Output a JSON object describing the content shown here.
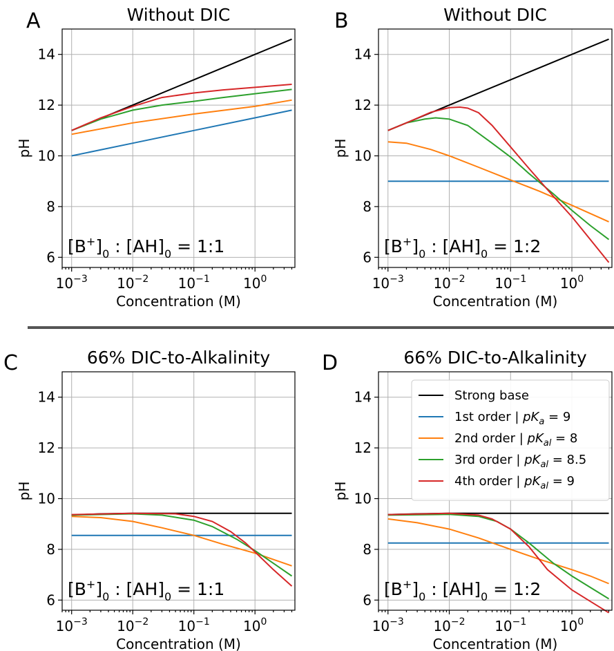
{
  "colors": {
    "strong_base": "#000000",
    "first_order": "#1f77b4",
    "second_order": "#ff7f0e",
    "third_order": "#2ca02c",
    "fourth_order": "#d62728"
  },
  "legend": [
    {
      "prefix": "Strong base",
      "var": "",
      "sub": "",
      "value": "",
      "color": "#000000"
    },
    {
      "prefix": "1st order | ",
      "var": "pK",
      "sub": "a",
      "value": " = 9",
      "color": "#1f77b4"
    },
    {
      "prefix": "2nd order | ",
      "var": "pK",
      "sub": "al",
      "value": " = 8",
      "color": "#ff7f0e"
    },
    {
      "prefix": "3rd order | ",
      "var": "pK",
      "sub": "al",
      "value": " = 8.5",
      "color": "#2ca02c"
    },
    {
      "prefix": "4th order | ",
      "var": "pK",
      "sub": "al",
      "value": " = 9",
      "color": "#d62728"
    }
  ],
  "chart_data": [
    {
      "type": "line",
      "panel": "A",
      "title": "Without DIC",
      "xlabel": "Concentration (M)",
      "ylabel": "pH",
      "xscale": "log",
      "xlim": [
        0.0007,
        4.5
      ],
      "ylim": [
        5.6,
        15.0
      ],
      "yticks": [
        6,
        8,
        10,
        12,
        14
      ],
      "xticks": [
        {
          "base": "10",
          "exp": "−3"
        },
        {
          "base": "10",
          "exp": "−2"
        },
        {
          "base": "10",
          "exp": "−1"
        },
        {
          "base": "10",
          "exp": "0"
        }
      ],
      "grid": true,
      "annotation": {
        "b": "[B",
        "plus": "+",
        "mid": "]",
        "s1": "0",
        "colon": " : [AH]",
        "s2": "0",
        "ratio": " = 1:1"
      },
      "series": [
        {
          "color": "#000000",
          "x": [
            0.001,
            0.01,
            0.1,
            1,
            4
          ],
          "y": [
            11.0,
            12.0,
            13.0,
            14.0,
            14.6
          ]
        },
        {
          "color": "#1f77b4",
          "x": [
            0.001,
            0.01,
            0.1,
            1,
            4
          ],
          "y": [
            10.0,
            10.5,
            11.0,
            11.5,
            11.8
          ]
        },
        {
          "color": "#ff7f0e",
          "x": [
            0.001,
            0.01,
            0.1,
            1,
            4
          ],
          "y": [
            10.85,
            11.3,
            11.65,
            11.95,
            12.2
          ]
        },
        {
          "color": "#2ca02c",
          "x": [
            0.001,
            0.003,
            0.01,
            0.03,
            0.1,
            0.3,
            1,
            4
          ],
          "y": [
            11.0,
            11.45,
            11.8,
            12.0,
            12.15,
            12.3,
            12.45,
            12.62
          ]
        },
        {
          "color": "#d62728",
          "x": [
            0.001,
            0.003,
            0.01,
            0.03,
            0.1,
            0.3,
            1,
            4
          ],
          "y": [
            11.0,
            11.5,
            11.95,
            12.3,
            12.48,
            12.6,
            12.7,
            12.82
          ]
        }
      ]
    },
    {
      "type": "line",
      "panel": "B",
      "title": "Without DIC",
      "xlabel": "Concentration (M)",
      "ylabel": "pH",
      "xscale": "log",
      "xlim": [
        0.0007,
        4.5
      ],
      "ylim": [
        5.6,
        15.0
      ],
      "yticks": [
        6,
        8,
        10,
        12,
        14
      ],
      "xticks": [
        {
          "base": "10",
          "exp": "−3"
        },
        {
          "base": "10",
          "exp": "−2"
        },
        {
          "base": "10",
          "exp": "−1"
        },
        {
          "base": "10",
          "exp": "0"
        }
      ],
      "grid": true,
      "annotation": {
        "b": "[B",
        "plus": "+",
        "mid": "]",
        "s1": "0",
        "colon": " : [AH]",
        "s2": "0",
        "ratio": " = 1:2"
      },
      "series": [
        {
          "color": "#000000",
          "x": [
            0.001,
            0.01,
            0.1,
            1,
            4
          ],
          "y": [
            11.0,
            12.0,
            13.0,
            14.0,
            14.6
          ]
        },
        {
          "color": "#1f77b4",
          "x": [
            0.001,
            4
          ],
          "y": [
            9.0,
            9.0
          ]
        },
        {
          "color": "#ff7f0e",
          "x": [
            0.001,
            0.002,
            0.005,
            0.01,
            0.03,
            0.1,
            0.3,
            1,
            4
          ],
          "y": [
            10.55,
            10.5,
            10.25,
            10.0,
            9.55,
            9.05,
            8.6,
            8.05,
            7.4
          ]
        },
        {
          "color": "#2ca02c",
          "x": [
            0.001,
            0.002,
            0.004,
            0.006,
            0.01,
            0.02,
            0.05,
            0.1,
            0.2,
            0.5,
            1,
            2,
            4
          ],
          "y": [
            11.0,
            11.3,
            11.45,
            11.5,
            11.45,
            11.2,
            10.5,
            9.95,
            9.3,
            8.5,
            7.85,
            7.25,
            6.7
          ]
        },
        {
          "color": "#d62728",
          "x": [
            0.001,
            0.002,
            0.005,
            0.01,
            0.015,
            0.02,
            0.03,
            0.05,
            0.1,
            0.2,
            0.5,
            1,
            2,
            4
          ],
          "y": [
            11.0,
            11.3,
            11.72,
            11.9,
            11.92,
            11.88,
            11.7,
            11.2,
            10.35,
            9.5,
            8.4,
            7.6,
            6.7,
            5.8
          ]
        }
      ]
    },
    {
      "type": "line",
      "panel": "C",
      "title": "66% DIC-to-Alkalinity",
      "xlabel": "Concentration (M)",
      "ylabel": "pH",
      "xscale": "log",
      "xlim": [
        0.0007,
        4.5
      ],
      "ylim": [
        5.6,
        15.0
      ],
      "yticks": [
        6,
        8,
        10,
        12,
        14
      ],
      "xticks": [
        {
          "base": "10",
          "exp": "−3"
        },
        {
          "base": "10",
          "exp": "−2"
        },
        {
          "base": "10",
          "exp": "−1"
        },
        {
          "base": "10",
          "exp": "0"
        }
      ],
      "grid": true,
      "annotation": {
        "b": "[B",
        "plus": "+",
        "mid": "]",
        "s1": "0",
        "colon": " : [AH]",
        "s2": "0",
        "ratio": " = 1:1"
      },
      "series": [
        {
          "color": "#000000",
          "x": [
            0.001,
            0.003,
            0.01,
            4
          ],
          "y": [
            9.35,
            9.4,
            9.42,
            9.42
          ]
        },
        {
          "color": "#1f77b4",
          "x": [
            0.001,
            4
          ],
          "y": [
            8.55,
            8.55
          ]
        },
        {
          "color": "#ff7f0e",
          "x": [
            0.001,
            0.003,
            0.01,
            0.03,
            0.1,
            0.3,
            1,
            2,
            4
          ],
          "y": [
            9.3,
            9.25,
            9.1,
            8.85,
            8.55,
            8.2,
            7.85,
            7.6,
            7.35
          ]
        },
        {
          "color": "#2ca02c",
          "x": [
            0.001,
            0.01,
            0.03,
            0.1,
            0.2,
            0.5,
            1,
            2,
            4
          ],
          "y": [
            9.35,
            9.4,
            9.35,
            9.15,
            8.9,
            8.4,
            7.95,
            7.45,
            6.95
          ]
        },
        {
          "color": "#d62728",
          "x": [
            0.001,
            0.01,
            0.05,
            0.1,
            0.2,
            0.4,
            0.7,
            1,
            2,
            4
          ],
          "y": [
            9.37,
            9.42,
            9.4,
            9.3,
            9.1,
            8.7,
            8.25,
            7.9,
            7.2,
            6.55
          ]
        }
      ]
    },
    {
      "type": "line",
      "panel": "D",
      "title": "66% DIC-to-Alkalinity",
      "xlabel": "Concentration (M)",
      "ylabel": "pH",
      "xscale": "log",
      "xlim": [
        0.0007,
        4.5
      ],
      "ylim": [
        5.6,
        15.0
      ],
      "yticks": [
        6,
        8,
        10,
        12,
        14
      ],
      "xticks": [
        {
          "base": "10",
          "exp": "−3"
        },
        {
          "base": "10",
          "exp": "−2"
        },
        {
          "base": "10",
          "exp": "−1"
        },
        {
          "base": "10",
          "exp": "0"
        }
      ],
      "grid": true,
      "legend_position": "upper-right",
      "annotation": {
        "b": "[B",
        "plus": "+",
        "mid": "]",
        "s1": "0",
        "colon": " : [AH]",
        "s2": "0",
        "ratio": " = 1:2"
      },
      "series": [
        {
          "color": "#000000",
          "x": [
            0.001,
            0.003,
            0.01,
            4
          ],
          "y": [
            9.37,
            9.4,
            9.42,
            9.42
          ]
        },
        {
          "color": "#1f77b4",
          "x": [
            0.001,
            4
          ],
          "y": [
            8.25,
            8.25
          ]
        },
        {
          "color": "#ff7f0e",
          "x": [
            0.001,
            0.003,
            0.01,
            0.03,
            0.1,
            0.3,
            1,
            2,
            4
          ],
          "y": [
            9.2,
            9.05,
            8.8,
            8.45,
            8.0,
            7.6,
            7.2,
            6.95,
            6.65
          ]
        },
        {
          "color": "#2ca02c",
          "x": [
            0.001,
            0.01,
            0.03,
            0.06,
            0.1,
            0.2,
            0.5,
            1,
            2,
            4
          ],
          "y": [
            9.35,
            9.38,
            9.3,
            9.1,
            8.8,
            8.25,
            7.45,
            6.95,
            6.5,
            6.05
          ]
        },
        {
          "color": "#d62728",
          "x": [
            0.001,
            0.01,
            0.03,
            0.05,
            0.1,
            0.2,
            0.4,
            1,
            2,
            4
          ],
          "y": [
            9.37,
            9.42,
            9.35,
            9.2,
            8.8,
            8.1,
            7.2,
            6.4,
            5.95,
            5.5
          ]
        }
      ]
    }
  ]
}
